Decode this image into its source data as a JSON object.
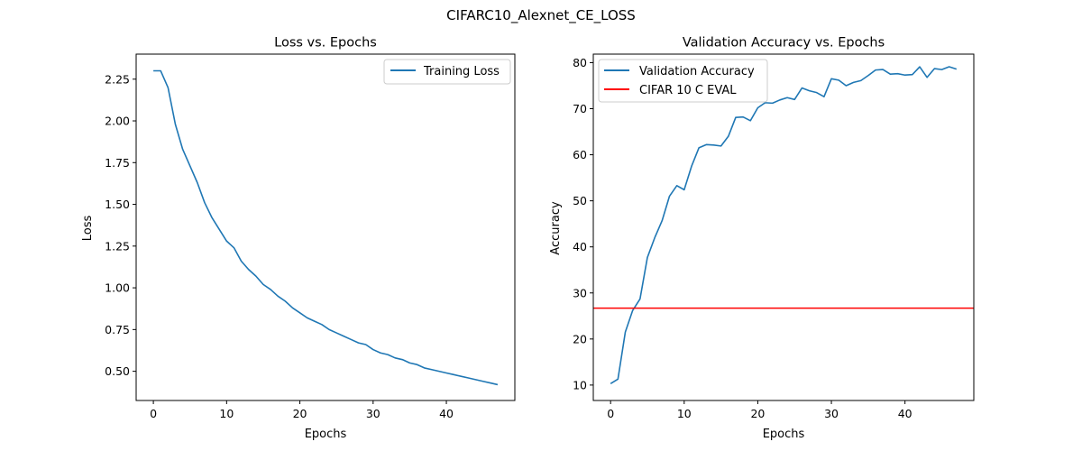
{
  "figure": {
    "suptitle": "CIFARC10_Alexnet_CE_LOSS"
  },
  "chart_data": [
    {
      "type": "line",
      "title": "Loss vs. Epochs",
      "xlabel": "Epochs",
      "ylabel": "Loss",
      "xlim": [
        -2.35,
        49.35
      ],
      "ylim": [
        0.325,
        2.4
      ],
      "xticks": [
        0,
        10,
        20,
        30,
        40
      ],
      "yticks": [
        0.5,
        0.75,
        1.0,
        1.25,
        1.5,
        1.75,
        2.0,
        2.25
      ],
      "ytick_labels": [
        "0.50",
        "0.75",
        "1.00",
        "1.25",
        "1.50",
        "1.75",
        "2.00",
        "2.25"
      ],
      "legend_position": "upper-right",
      "grid": false,
      "series": [
        {
          "name": "Training Loss",
          "color": "#1f77b4",
          "x": [
            0,
            1,
            2,
            3,
            4,
            5,
            6,
            7,
            8,
            9,
            10,
            11,
            12,
            13,
            14,
            15,
            16,
            17,
            18,
            19,
            20,
            21,
            22,
            23,
            24,
            25,
            26,
            27,
            28,
            29,
            30,
            31,
            32,
            33,
            34,
            35,
            36,
            37,
            38,
            39,
            40,
            41,
            42,
            43,
            44,
            45,
            46,
            47
          ],
          "y": [
            2.3,
            2.3,
            2.2,
            1.98,
            1.83,
            1.73,
            1.63,
            1.51,
            1.42,
            1.35,
            1.28,
            1.24,
            1.16,
            1.11,
            1.07,
            1.02,
            0.99,
            0.95,
            0.92,
            0.88,
            0.85,
            0.82,
            0.8,
            0.78,
            0.75,
            0.73,
            0.71,
            0.69,
            0.67,
            0.66,
            0.63,
            0.61,
            0.6,
            0.58,
            0.57,
            0.55,
            0.54,
            0.52,
            0.51,
            0.5,
            0.49,
            0.48,
            0.47,
            0.46,
            0.45,
            0.44,
            0.43,
            0.42
          ]
        }
      ]
    },
    {
      "type": "line",
      "title": "Validation Accuracy vs. Epochs",
      "xlabel": "Epochs",
      "ylabel": "Accuracy",
      "xlim": [
        -2.35,
        49.35
      ],
      "ylim": [
        6.65,
        81.85
      ],
      "xticks": [
        0,
        10,
        20,
        30,
        40
      ],
      "yticks": [
        10,
        20,
        30,
        40,
        50,
        60,
        70,
        80
      ],
      "ytick_labels": [
        "10",
        "20",
        "30",
        "40",
        "50",
        "60",
        "70",
        "80"
      ],
      "legend_position": "upper-left",
      "grid": false,
      "series": [
        {
          "name": "Validation Accuracy",
          "color": "#1f77b4",
          "x": [
            0,
            1,
            2,
            3,
            4,
            5,
            6,
            7,
            8,
            9,
            10,
            11,
            12,
            13,
            14,
            15,
            16,
            17,
            18,
            19,
            20,
            21,
            22,
            23,
            24,
            25,
            26,
            27,
            28,
            29,
            30,
            31,
            32,
            33,
            34,
            35,
            36,
            37,
            38,
            39,
            40,
            41,
            42,
            43,
            44,
            45,
            46,
            47
          ],
          "y": [
            10.3,
            11.3,
            21.5,
            26.2,
            28.7,
            37.7,
            42.0,
            45.7,
            51.0,
            53.3,
            52.4,
            57.5,
            61.5,
            62.2,
            62.1,
            61.9,
            64.0,
            68.1,
            68.2,
            67.4,
            70.2,
            71.3,
            71.2,
            71.9,
            72.4,
            72.0,
            74.5,
            73.9,
            73.5,
            72.6,
            76.5,
            76.2,
            75.0,
            75.7,
            76.1,
            77.2,
            78.4,
            78.5,
            77.5,
            77.6,
            77.3,
            77.4,
            79.1,
            76.8,
            78.7,
            78.5,
            79.1,
            78.6
          ]
        },
        {
          "name": "CIFAR 10 C EVAL",
          "color": "#ff0000",
          "hline": 26.7
        }
      ]
    }
  ]
}
